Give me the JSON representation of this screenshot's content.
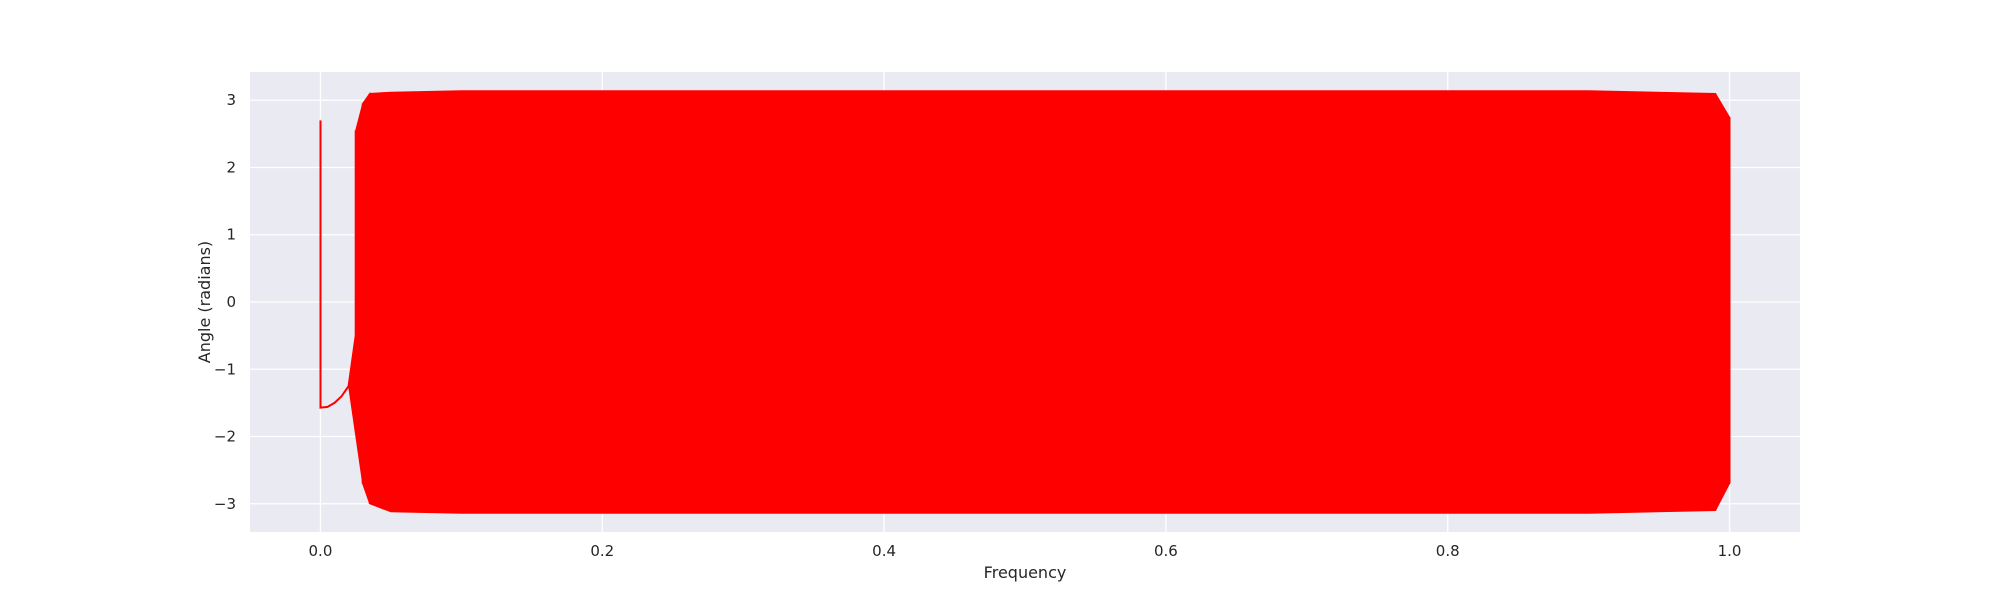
{
  "chart_data": {
    "type": "line",
    "title": "",
    "xlabel": "Frequency",
    "ylabel": "Angle (radians)",
    "xlim": [
      -0.05,
      1.05
    ],
    "ylim": [
      -3.42,
      3.42
    ],
    "xticks": [
      0.0,
      0.2,
      0.4,
      0.6,
      0.8,
      1.0
    ],
    "xtick_labels": [
      "0.0",
      "0.2",
      "0.4",
      "0.6",
      "0.8",
      "1.0"
    ],
    "yticks": [
      3,
      2,
      1,
      0,
      -1,
      -2,
      -3
    ],
    "ytick_labels": [
      "3",
      "2",
      "1",
      "0",
      "−1",
      "−2",
      "−3"
    ],
    "grid": true,
    "legend": "none",
    "series": [
      {
        "color": "#ff0000",
        "points": [
          [
            0.0,
            0.0
          ],
          [
            0.0,
            2.7
          ],
          [
            0.0,
            -1.57
          ],
          [
            0.005,
            -1.56
          ],
          [
            0.01,
            -1.5
          ],
          [
            0.015,
            -1.4
          ],
          [
            0.02,
            -1.25
          ],
          [
            0.025,
            -0.5
          ],
          [
            0.025,
            2.55
          ],
          [
            0.03,
            -2.7
          ],
          [
            0.03,
            2.95
          ],
          [
            0.035,
            -3.0
          ],
          [
            0.035,
            3.1
          ],
          [
            0.05,
            -3.12
          ],
          [
            0.05,
            3.12
          ],
          [
            0.1,
            -3.14
          ],
          [
            0.1,
            3.14
          ],
          [
            0.2,
            -3.14
          ],
          [
            0.2,
            3.14
          ],
          [
            0.3,
            -3.14
          ],
          [
            0.3,
            3.14
          ],
          [
            0.4,
            -3.14
          ],
          [
            0.4,
            3.14
          ],
          [
            0.5,
            -3.14
          ],
          [
            0.5,
            3.14
          ],
          [
            0.6,
            -3.14
          ],
          [
            0.6,
            3.14
          ],
          [
            0.7,
            -3.14
          ],
          [
            0.7,
            3.14
          ],
          [
            0.8,
            -3.14
          ],
          [
            0.8,
            3.14
          ],
          [
            0.9,
            -3.14
          ],
          [
            0.9,
            3.14
          ],
          [
            0.99,
            -3.1
          ],
          [
            0.99,
            3.1
          ],
          [
            1.0,
            -2.7
          ],
          [
            1.0,
            2.75
          ],
          [
            1.0,
            0.0
          ]
        ]
      }
    ]
  }
}
